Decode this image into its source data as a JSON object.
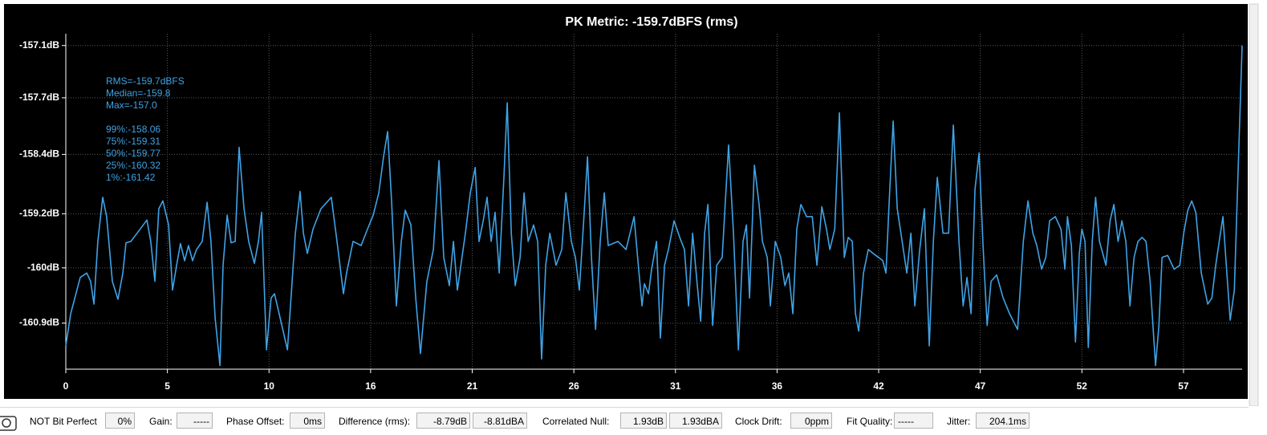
{
  "chart_data": {
    "type": "line",
    "title": "PK Metric: -159.7dBFS (rms)",
    "annotations": [
      "RMS=-159.7dBFS",
      "Median=-159.8",
      "Max=-157.0",
      "99%:-158.06",
      "75%:-159.31",
      "50%:-159.77",
      "25%:-160.32",
      "1%:-161.42"
    ],
    "color": "#3fa3e6",
    "yscale": "amplitude",
    "grid": true,
    "xlim": [
      0,
      60.2
    ],
    "ylim": [
      -161.73,
      -156.97
    ],
    "xticks": [
      0,
      {
        "value": 5.2,
        "label": "5"
      },
      {
        "value": 10.4,
        "label": "10"
      },
      {
        "value": 15.6,
        "label": "16"
      },
      {
        "value": 20.8,
        "label": "21"
      },
      26,
      {
        "value": 31.2,
        "label": "31"
      },
      {
        "value": 36.4,
        "label": "36"
      },
      {
        "value": 41.6,
        "label": "42"
      },
      {
        "value": 46.8,
        "label": "47"
      },
      52,
      {
        "value": 57.2,
        "label": "57"
      }
    ],
    "yticks": [
      {
        "value": -157.1,
        "label": "-157.1dB"
      },
      {
        "value": -157.7,
        "label": "-157.7dB"
      },
      {
        "value": -158.4,
        "label": "-158.4dB"
      },
      {
        "value": -159.2,
        "label": "-159.2dB"
      },
      {
        "value": -160,
        "label": "-160dB"
      },
      {
        "value": -160.9,
        "label": "-160.9dB"
      }
    ],
    "x": [
      0.0,
      0.25,
      0.74,
      1.07,
      1.27,
      1.44,
      1.64,
      1.89,
      2.09,
      2.38,
      2.67,
      2.92,
      3.08,
      3.33,
      4.15,
      4.35,
      4.56,
      4.76,
      4.97,
      5.26,
      5.46,
      5.67,
      5.87,
      6.08,
      6.28,
      6.49,
      6.69,
      6.98,
      7.23,
      7.43,
      7.64,
      7.89,
      8.05,
      8.26,
      8.46,
      8.67,
      8.87,
      9.12,
      9.36,
      9.65,
      9.86,
      10.02,
      10.27,
      10.51,
      10.68,
      11.01,
      11.34,
      11.5,
      11.75,
      11.99,
      12.16,
      12.36,
      12.65,
      13.06,
      13.59,
      13.88,
      14.21,
      14.37,
      14.7,
      15.11,
      15.44,
      15.73,
      16.02,
      16.26,
      16.47,
      16.67,
      16.92,
      17.17,
      17.37,
      17.66,
      17.91,
      18.15,
      18.48,
      18.81,
      19.1,
      19.34,
      19.63,
      19.84,
      20.04,
      20.45,
      20.7,
      20.95,
      21.15,
      21.36,
      21.56,
      21.77,
      21.97,
      22.18,
      22.42,
      22.59,
      22.8,
      23.0,
      23.25,
      23.45,
      23.66,
      23.94,
      24.15,
      24.35,
      24.56,
      24.77,
      25.09,
      25.38,
      25.59,
      25.87,
      26.08,
      26.28,
      26.49,
      26.7,
      26.9,
      27.11,
      27.35,
      27.56,
      27.76,
      28.26,
      28.67,
      29.08,
      29.28,
      29.49,
      29.61,
      29.82,
      29.98,
      30.23,
      30.43,
      30.64,
      30.84,
      31.13,
      31.42,
      31.66,
      31.87,
      32.08,
      32.28,
      32.49,
      32.69,
      32.86,
      33.1,
      33.31,
      33.59,
      33.92,
      34.17,
      34.42,
      34.66,
      34.83,
      34.99,
      35.24,
      35.48,
      35.65,
      35.9,
      36.06,
      36.31,
      36.59,
      36.8,
      37.0,
      37.21,
      37.41,
      37.62,
      37.91,
      38.2,
      38.44,
      38.69,
      38.93,
      39.1,
      39.35,
      39.59,
      39.84,
      40.04,
      40.25,
      40.41,
      40.58,
      40.82,
      41.07,
      41.32,
      41.6,
      41.81,
      41.97,
      42.14,
      42.34,
      42.55,
      42.8,
      43.04,
      43.25,
      43.45,
      43.7,
      43.94,
      44.19,
      44.4,
      44.6,
      44.89,
      45.18,
      45.42,
      45.71,
      45.92,
      46.12,
      46.33,
      46.53,
      46.74,
      46.94,
      47.15,
      47.35,
      47.64,
      47.97,
      48.3,
      48.71,
      49.0,
      49.24,
      49.49,
      49.69,
      49.94,
      50.15,
      50.35,
      50.64,
      50.93,
      51.13,
      51.26,
      51.46,
      51.67,
      51.87,
      52.0,
      52.16,
      52.33,
      52.53,
      52.7,
      52.9,
      53.23,
      53.44,
      53.64,
      53.85,
      54.05,
      54.25,
      54.46,
      54.67,
      54.87,
      55.08,
      55.28,
      55.49,
      55.77,
      55.94,
      56.1,
      56.39,
      56.72,
      57.01,
      57.21,
      57.42,
      57.62,
      57.83,
      58.11,
      58.44,
      58.65,
      58.85,
      59.06,
      59.22,
      59.39,
      59.59,
      59.8,
      60.01,
      60.2
    ],
    "values": [
      -161.3,
      -160.74,
      -160.15,
      -160.08,
      -160.21,
      -160.58,
      -159.6,
      -158.97,
      -159.24,
      -160.21,
      -160.5,
      -160.08,
      -159.62,
      -159.6,
      -159.29,
      -159.6,
      -160.21,
      -159.13,
      -159.02,
      -159.36,
      -160.35,
      -159.96,
      -159.63,
      -159.89,
      -159.66,
      -159.89,
      -159.72,
      -159.6,
      -159.04,
      -159.6,
      -160.81,
      -161.66,
      -159.96,
      -159.22,
      -159.62,
      -159.6,
      -158.31,
      -159.13,
      -159.6,
      -159.93,
      -159.6,
      -159.18,
      -161.37,
      -160.48,
      -160.41,
      -160.87,
      -161.37,
      -160.61,
      -159.48,
      -158.89,
      -159.48,
      -159.78,
      -159.42,
      -159.13,
      -158.97,
      -159.6,
      -160.41,
      -160.08,
      -159.6,
      -159.66,
      -159.42,
      -159.22,
      -158.91,
      -158.43,
      -158.11,
      -159.02,
      -160.61,
      -159.6,
      -159.15,
      -159.36,
      -160.48,
      -161.44,
      -160.21,
      -159.72,
      -158.48,
      -159.84,
      -160.28,
      -159.6,
      -160.35,
      -159.48,
      -158.91,
      -158.57,
      -159.6,
      -159.3,
      -158.97,
      -159.6,
      -159.18,
      -160.08,
      -158.7,
      -157.76,
      -159.48,
      -160.28,
      -159.84,
      -158.91,
      -159.6,
      -159.36,
      -159.6,
      -161.54,
      -159.96,
      -159.48,
      -159.96,
      -159.72,
      -158.91,
      -159.6,
      -159.84,
      -160.35,
      -159.36,
      -158.43,
      -159.84,
      -161.01,
      -159.6,
      -158.91,
      -159.66,
      -159.6,
      -159.72,
      -159.24,
      -159.89,
      -160.61,
      -160.25,
      -160.41,
      -160.02,
      -159.6,
      -161.16,
      -159.96,
      -159.72,
      -159.3,
      -159.54,
      -159.72,
      -160.61,
      -159.48,
      -160.15,
      -160.87,
      -159.48,
      -159.07,
      -160.94,
      -159.96,
      -159.84,
      -158.28,
      -159.48,
      -161.37,
      -159.6,
      -159.36,
      -160.48,
      -158.54,
      -159.07,
      -159.6,
      -159.84,
      -160.61,
      -159.6,
      -159.84,
      -160.28,
      -160.08,
      -160.74,
      -159.42,
      -159.07,
      -159.24,
      -159.24,
      -159.96,
      -159.1,
      -159.42,
      -159.72,
      -159.42,
      -157.88,
      -159.84,
      -159.54,
      -159.6,
      -160.74,
      -161.04,
      -160.08,
      -159.72,
      -159.78,
      -159.84,
      -159.89,
      -160.08,
      -159.02,
      -157.98,
      -159.13,
      -159.6,
      -160.08,
      -159.48,
      -160.61,
      -159.72,
      -159.13,
      -161.3,
      -159.6,
      -158.7,
      -159.48,
      -159.48,
      -158.03,
      -159.6,
      -160.61,
      -160.15,
      -160.74,
      -158.86,
      -158.38,
      -159.66,
      -160.94,
      -160.21,
      -160.11,
      -160.48,
      -160.74,
      -161.01,
      -159.6,
      -159.02,
      -159.48,
      -159.66,
      -160.02,
      -159.84,
      -159.3,
      -159.24,
      -159.42,
      -160.02,
      -159.24,
      -159.66,
      -161.23,
      -159.78,
      -159.42,
      -159.6,
      -161.33,
      -159.6,
      -158.97,
      -159.6,
      -159.96,
      -159.3,
      -159.07,
      -159.6,
      -159.3,
      -159.6,
      -160.61,
      -159.84,
      -159.6,
      -159.54,
      -159.6,
      -160.21,
      -161.66,
      -160.94,
      -159.84,
      -159.81,
      -160.02,
      -159.96,
      -159.48,
      -159.15,
      -159.02,
      -159.18,
      -160.08,
      -160.58,
      -160.48,
      -159.96,
      -159.54,
      -159.24,
      -159.96,
      -160.85,
      -160.35,
      -158.48,
      -157.1
    ]
  },
  "status_bar": {
    "items": [
      {
        "label": "NOT Bit Perfect",
        "values": [
          "0%"
        ]
      },
      {
        "label": "Gain:",
        "values": [
          "-----"
        ]
      },
      {
        "label": "Phase Offset:",
        "values": [
          "0ms"
        ]
      },
      {
        "label": "Difference (rms):",
        "values": [
          "-8.79dB",
          "-8.81dBA"
        ]
      },
      {
        "label": "Correlated Null:",
        "values": [
          "1.93dB",
          "1.93dBA"
        ]
      },
      {
        "label": "Clock Drift:",
        "values": [
          "0ppm"
        ]
      },
      {
        "label": "Fit Quality:",
        "values": [
          "-----"
        ]
      },
      {
        "label": "Jitter:",
        "values": [
          "204.1ms"
        ]
      }
    ]
  }
}
